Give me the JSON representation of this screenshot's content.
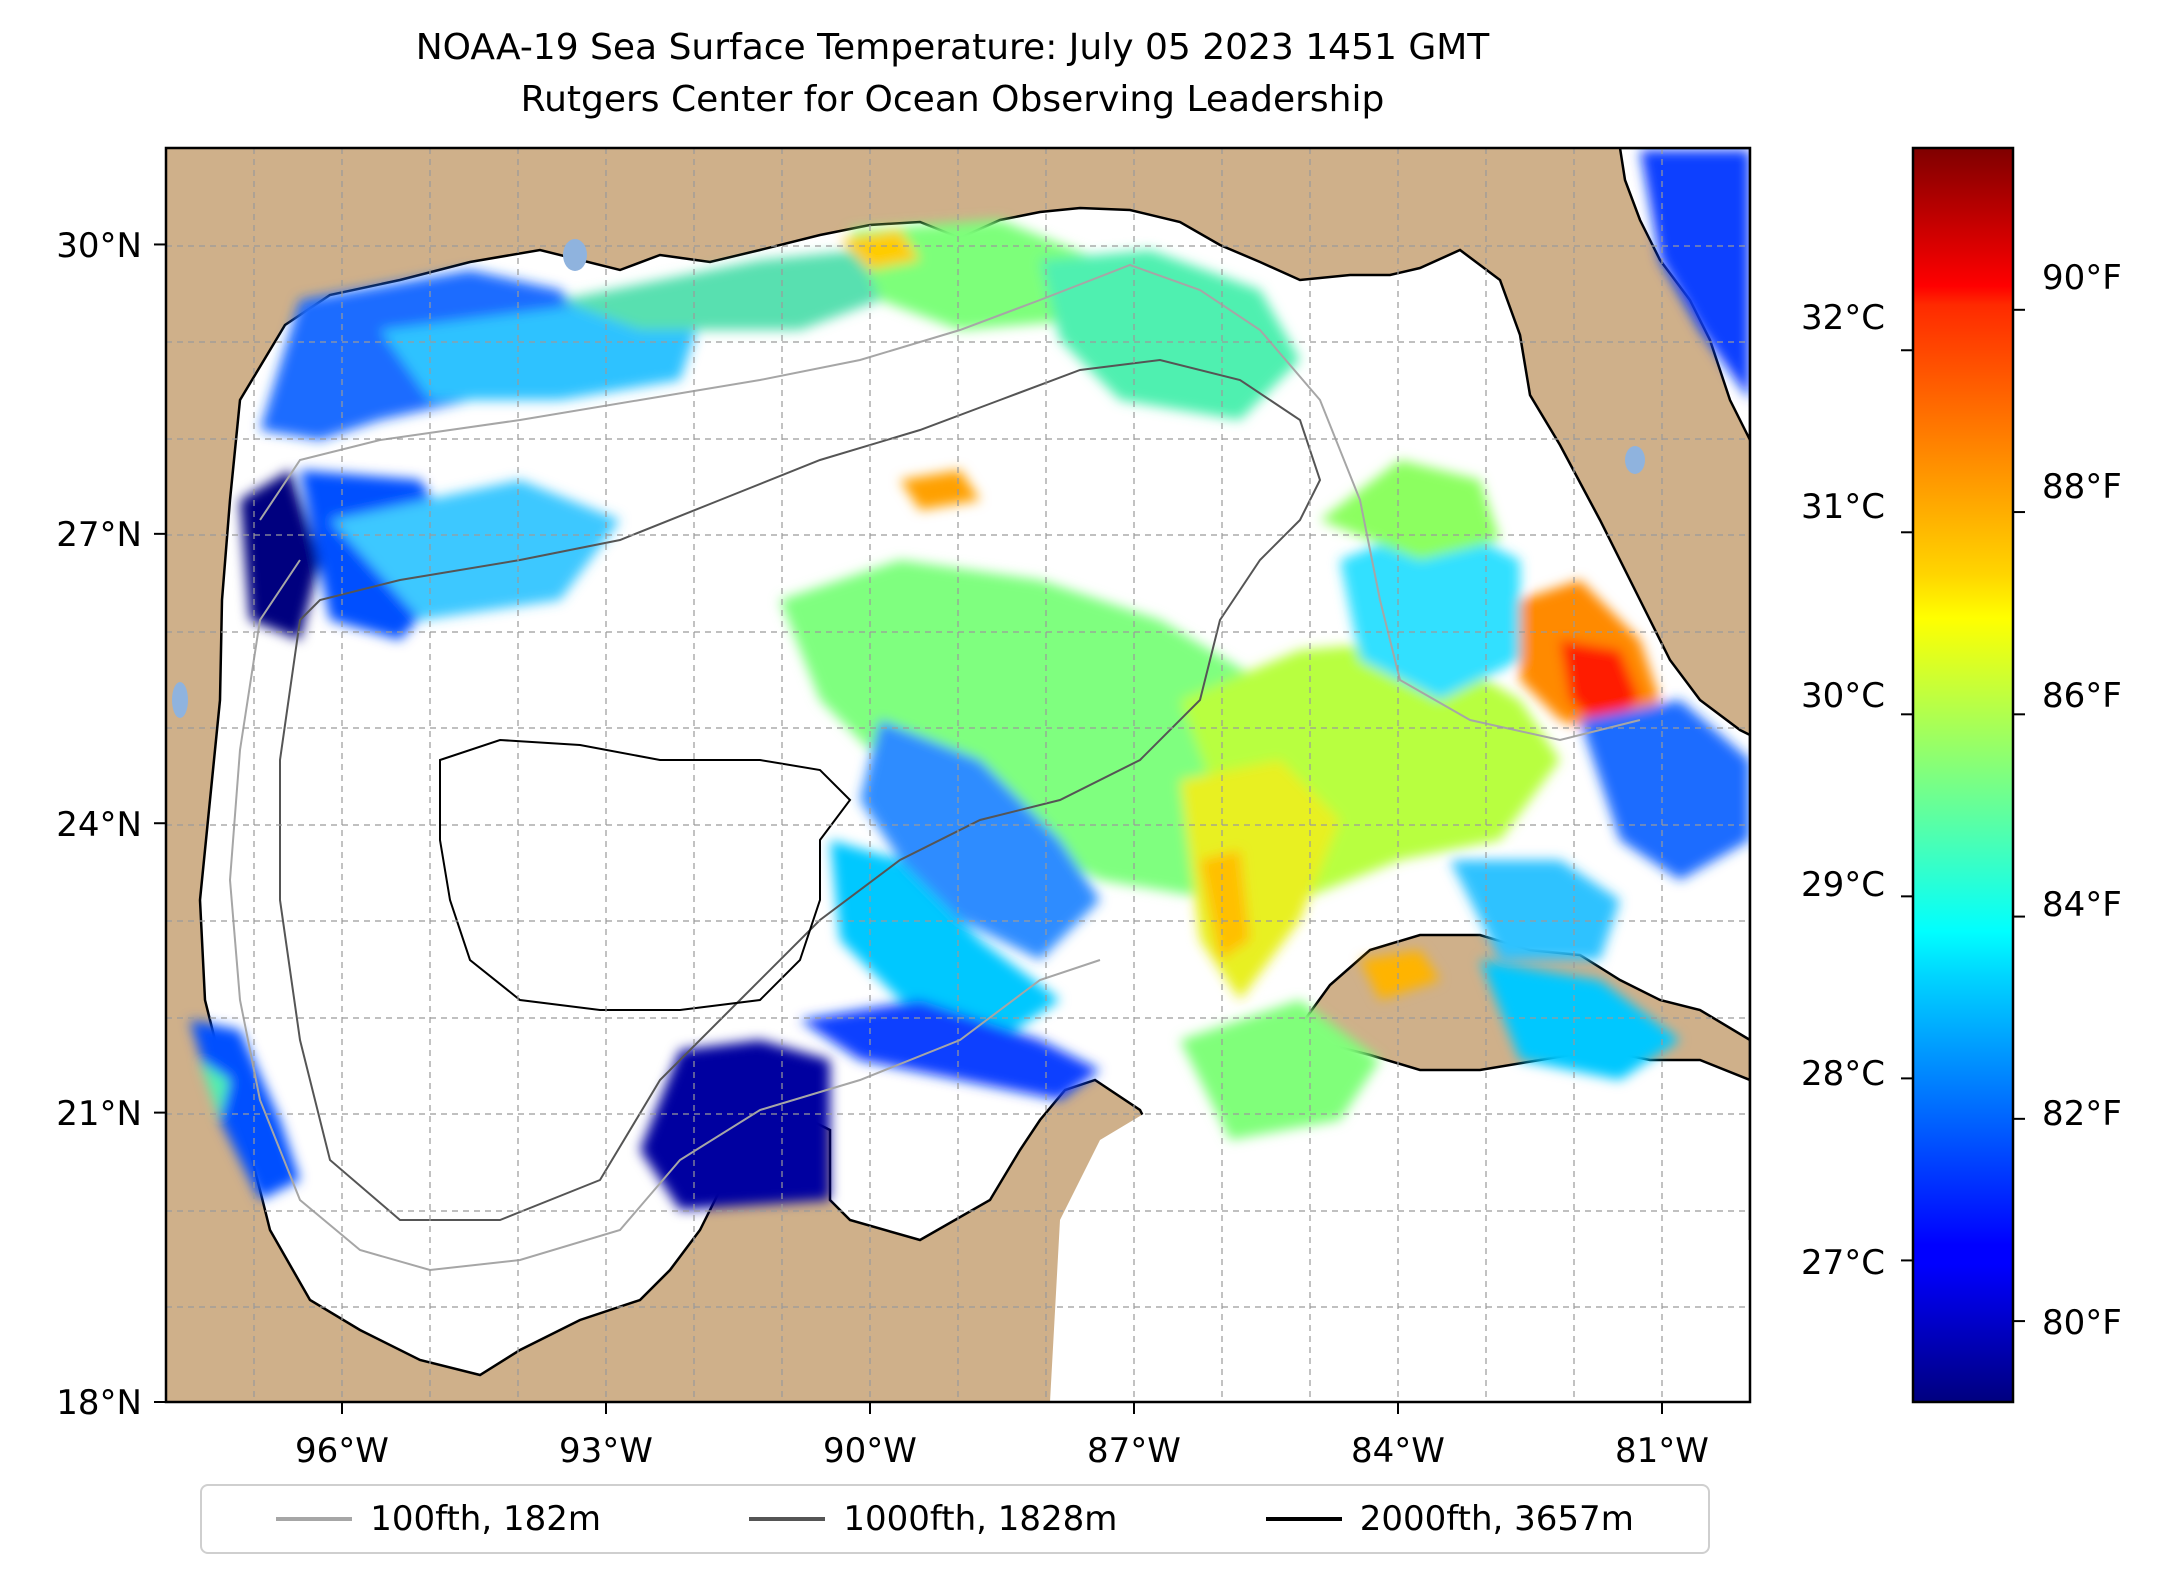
{
  "title": {
    "line1": "NOAA-19 Sea Surface Temperature: July 05 2023 1451 GMT",
    "line2": "Rutgers Center for Ocean Observing Leadership"
  },
  "map": {
    "lon_range": [
      -98.0,
      -80.0
    ],
    "lat_range": [
      18.0,
      31.0
    ],
    "lon_ticks": [
      "96°W",
      "93°W",
      "90°W",
      "87°W",
      "84°W",
      "81°W"
    ],
    "lon_tick_values": [
      -96,
      -93,
      -90,
      -87,
      -84,
      -81
    ],
    "lat_ticks": [
      "18°N",
      "21°N",
      "24°N",
      "27°N",
      "30°N"
    ],
    "lat_tick_values": [
      18,
      21,
      24,
      27,
      30
    ],
    "gridlines": true,
    "land_color": "#cfb08a",
    "water_color": "#ffffff",
    "lake_color": "#8fb3de"
  },
  "colorbar": {
    "colormap": "jet",
    "celsius_labels": [
      "27°C",
      "28°C",
      "29°C",
      "30°C",
      "31°C",
      "32°C"
    ],
    "fahrenheit_labels": [
      "80°F",
      "82°F",
      "84°F",
      "86°F",
      "88°F",
      "90°F"
    ],
    "range_f": [
      79.2,
      91.6
    ]
  },
  "legend": {
    "items": [
      {
        "label": "100fth, 182m",
        "color": "#a6a6a6"
      },
      {
        "label": "1000fth, 1828m",
        "color": "#555555"
      },
      {
        "label": "2000fth, 3657m",
        "color": "#000000"
      }
    ]
  }
}
